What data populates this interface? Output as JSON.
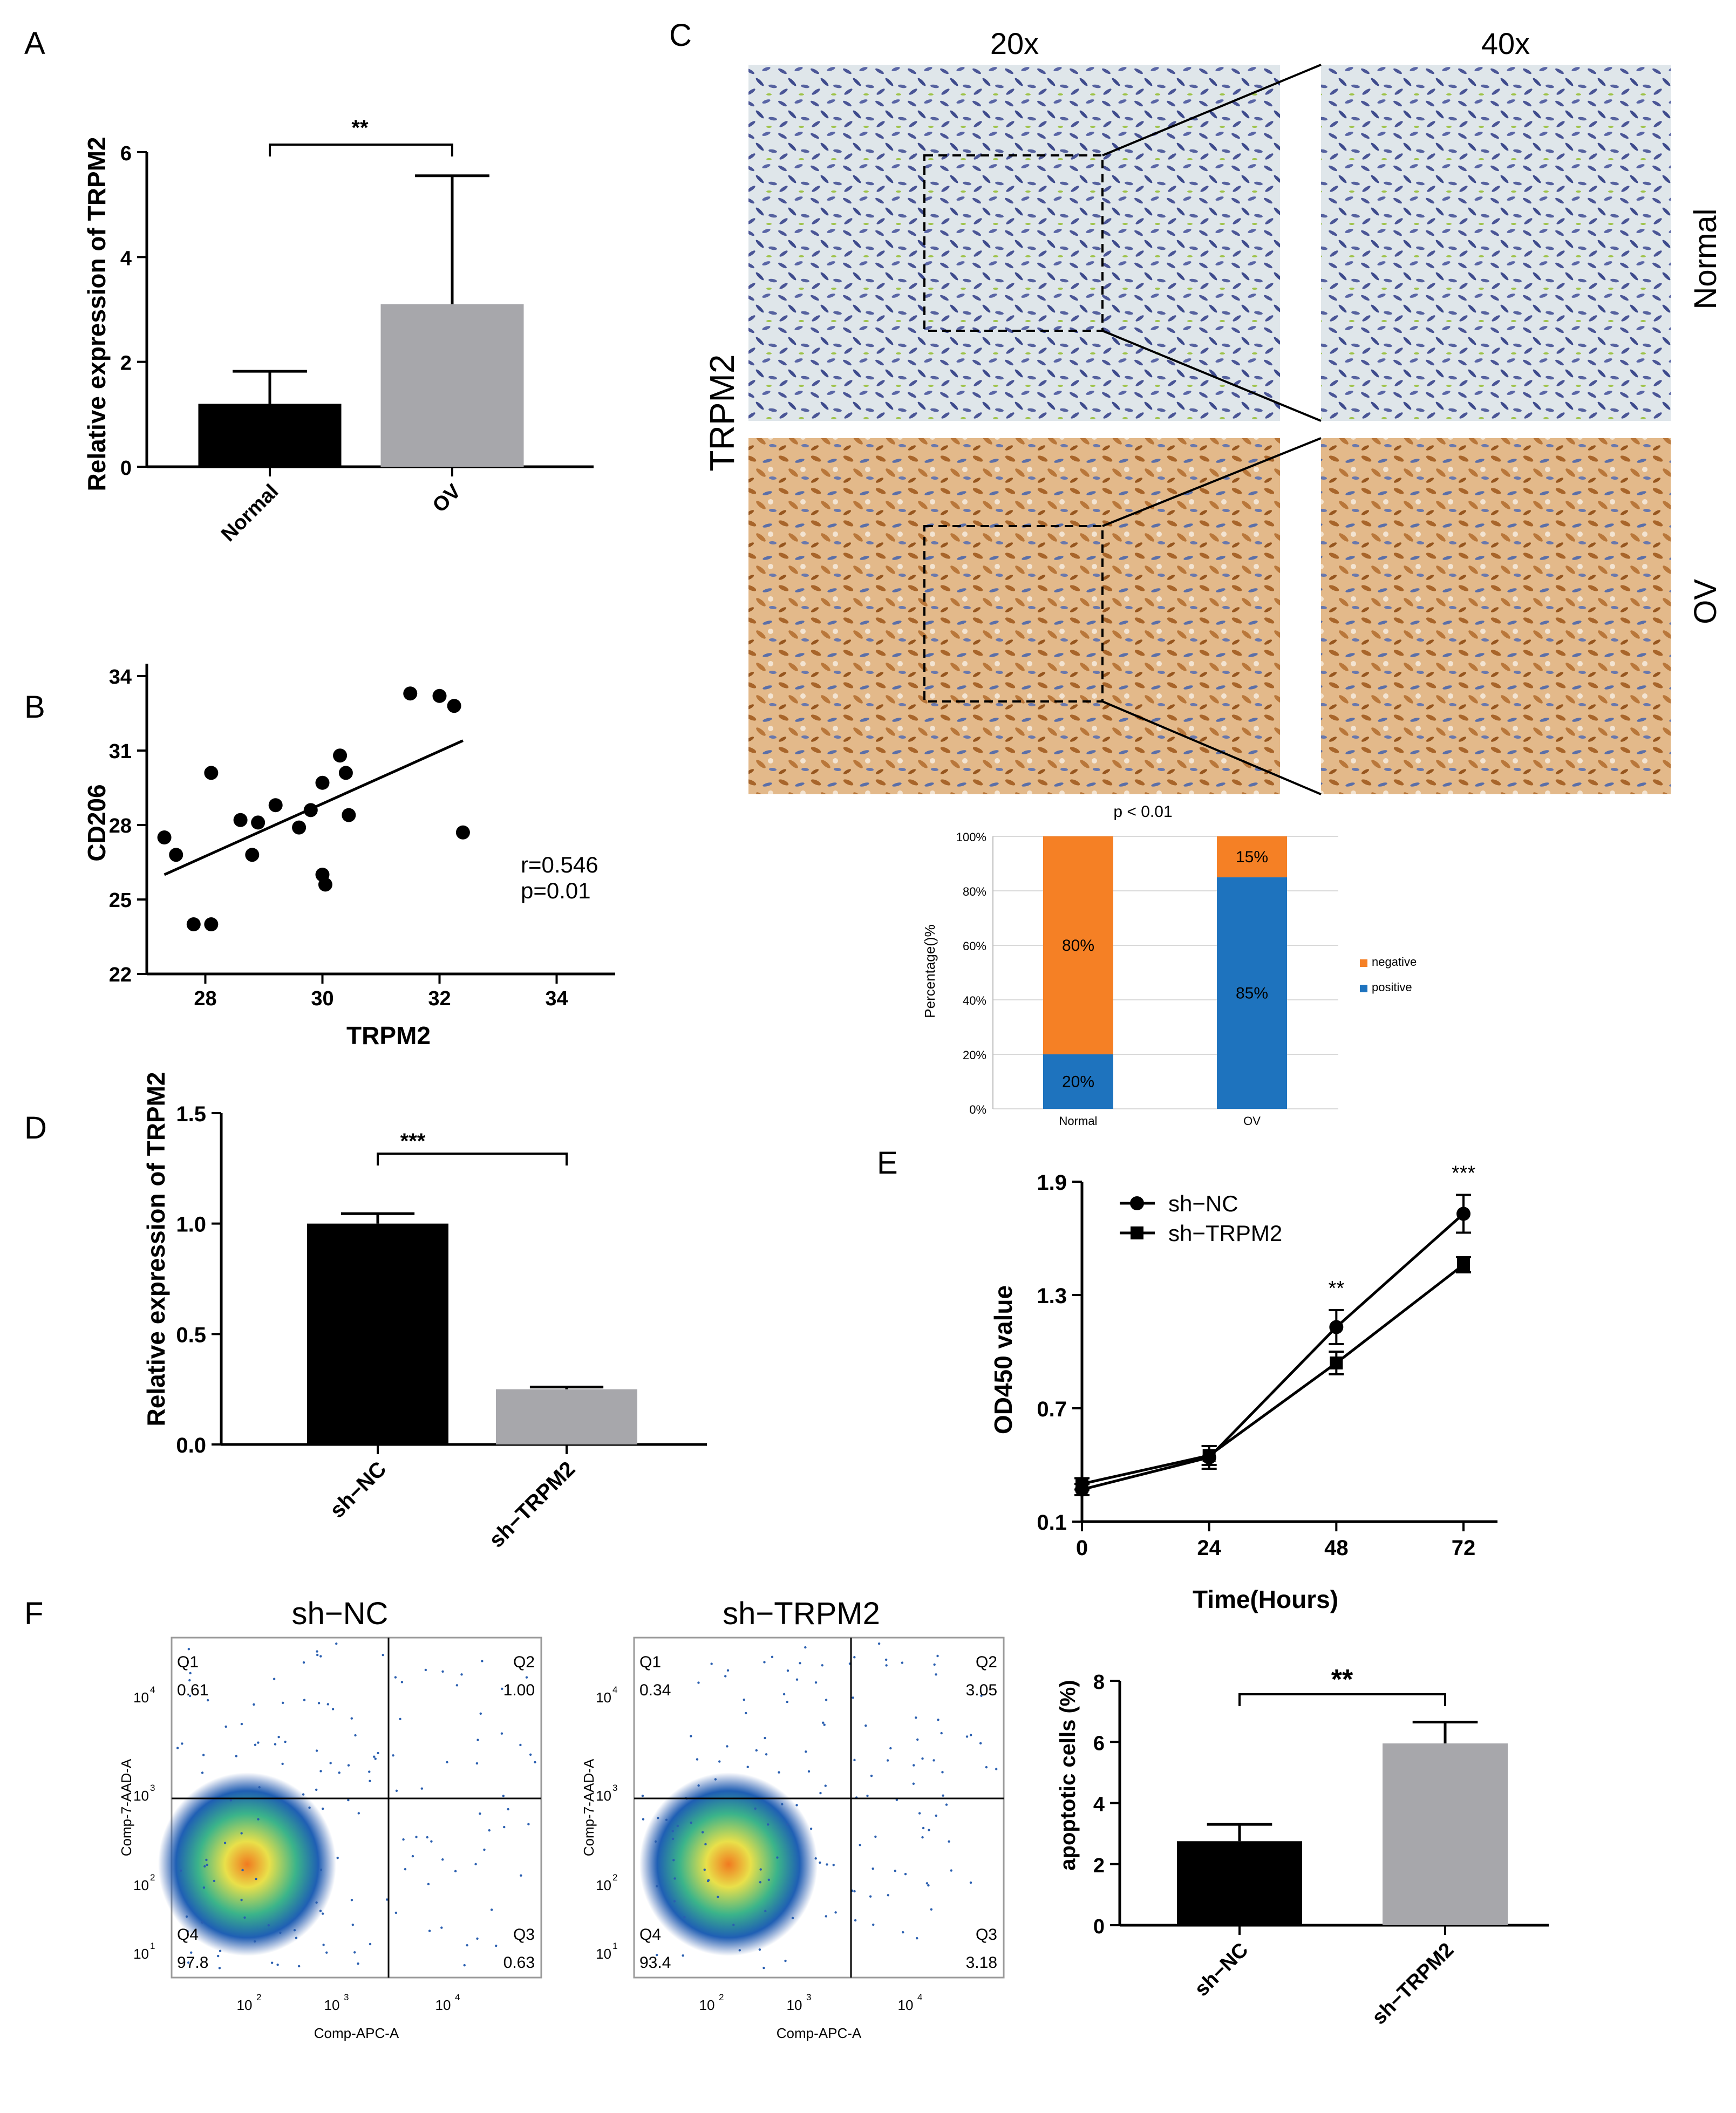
{
  "panel_letters": {
    "a": "A",
    "b": "B",
    "c": "C",
    "d": "D",
    "e": "E",
    "f": "F"
  },
  "colors": {
    "black": "#000000",
    "gray": "#a7a7ab",
    "orange": "#f58025",
    "blue": "#1e73be",
    "he_normal_bg": "#dfe6ea",
    "he_ov_bg": "#e3b98a"
  },
  "chart_data": [
    {
      "panel": "A",
      "type": "bar",
      "categories": [
        "Normal",
        "OV"
      ],
      "values": [
        1.2,
        3.1
      ],
      "errors": [
        0.62,
        2.45
      ],
      "colors": [
        "#000000",
        "#a7a7ab"
      ],
      "ylabel": "Relative expression of TRPM2",
      "yticks": [
        "0",
        "2",
        "4",
        "6"
      ],
      "ylim": [
        0,
        6
      ],
      "significance": "**"
    },
    {
      "panel": "B",
      "type": "scatter",
      "xlabel": "TRPM2",
      "ylabel": "CD206",
      "xticks": [
        "28",
        "30",
        "32",
        "34"
      ],
      "yticks": [
        "22",
        "25",
        "28",
        "31",
        "34"
      ],
      "xlim": [
        27,
        35
      ],
      "ylim": [
        22,
        34.5
      ],
      "points": [
        [
          27.3,
          27.5
        ],
        [
          27.5,
          26.8
        ],
        [
          27.8,
          24
        ],
        [
          28.1,
          30.1
        ],
        [
          28.1,
          24
        ],
        [
          28.6,
          28.2
        ],
        [
          28.8,
          26.8
        ],
        [
          28.9,
          28.1
        ],
        [
          29.2,
          28.8
        ],
        [
          29.6,
          27.9
        ],
        [
          29.8,
          28.6
        ],
        [
          30.0,
          26
        ],
        [
          30.0,
          29.7
        ],
        [
          30.05,
          25.6
        ],
        [
          30.3,
          30.8
        ],
        [
          30.4,
          30.1
        ],
        [
          30.45,
          28.4
        ],
        [
          31.5,
          33.3
        ],
        [
          32.0,
          33.2
        ],
        [
          32.25,
          32.8
        ],
        [
          32.4,
          27.7
        ]
      ],
      "fit_line": [
        [
          27.3,
          26
        ],
        [
          32.4,
          31.4
        ]
      ],
      "r_text": "r=0.546",
      "p_text": "p=0.01"
    },
    {
      "panel": "C",
      "type": "bar",
      "title": "p < 0.01",
      "categories": [
        "Normal",
        "OV"
      ],
      "series": [
        {
          "name": "positive",
          "values": [
            20,
            85
          ],
          "labels": [
            "20%",
            "85%"
          ],
          "color": "#1e73be"
        },
        {
          "name": "negative",
          "values": [
            80,
            15
          ],
          "labels": [
            "80%",
            "15%"
          ],
          "color": "#f58025"
        }
      ],
      "ylabel": "Percentage()%",
      "yticks": [
        "0%",
        "20%",
        "40%",
        "60%",
        "80%",
        "100%"
      ],
      "ylim": [
        0,
        100
      ],
      "legend": [
        "negative",
        "positive"
      ],
      "stacked": true
    },
    {
      "panel": "D",
      "type": "bar",
      "categories": [
        "sh−NC",
        "sh−TRPM2"
      ],
      "values": [
        1.0,
        0.25
      ],
      "errors": [
        0.045,
        0.01
      ],
      "colors": [
        "#000000",
        "#a7a7ab"
      ],
      "ylabel": "Relative expression of TRPM2",
      "yticks": [
        "0.0",
        "0.5",
        "1.0",
        "1.5"
      ],
      "ylim": [
        0,
        1.5
      ],
      "significance": "***"
    },
    {
      "panel": "E",
      "type": "line",
      "x": [
        0,
        24,
        48,
        72
      ],
      "series": [
        {
          "name": "sh−NC",
          "values": [
            0.27,
            0.44,
            1.13,
            1.73
          ],
          "errors": [
            0.03,
            0.06,
            0.09,
            0.1
          ],
          "marker": "circle"
        },
        {
          "name": "sh−TRPM2",
          "values": [
            0.3,
            0.45,
            0.94,
            1.46
          ],
          "errors": [
            0.03,
            0.05,
            0.06,
            0.04
          ],
          "marker": "square"
        }
      ],
      "xlabel": "Time(Hours)",
      "ylabel": "OD450 value",
      "xticks": [
        "0",
        "24",
        "48",
        "72"
      ],
      "yticks": [
        "0.1",
        "0.7",
        "1.3",
        "1.9"
      ],
      "ylim": [
        0.1,
        1.9
      ],
      "annotations": [
        {
          "x": 48,
          "text": "**"
        },
        {
          "x": 72,
          "text": "***"
        }
      ]
    },
    {
      "panel": "F",
      "type": "bar",
      "categories": [
        "sh−NC",
        "sh−TRPM2"
      ],
      "values": [
        2.75,
        5.95
      ],
      "errors": [
        0.55,
        0.7
      ],
      "colors": [
        "#000000",
        "#a7a7ab"
      ],
      "ylabel": "apoptotic cells (%)",
      "yticks": [
        "0",
        "2",
        "4",
        "6",
        "8"
      ],
      "ylim": [
        0,
        8
      ],
      "significance": "**"
    }
  ],
  "panel_c": {
    "col_20x": "20x",
    "col_40x": "40x",
    "row_label": "TRPM2",
    "row_normal": "Normal",
    "row_ov": "OV"
  },
  "flow": [
    {
      "title": "sh−NC",
      "q1": "Q1",
      "q1v": "0.61",
      "q2": "Q2",
      "q2v": "1.00",
      "q3": "Q3",
      "q3v": "0.63",
      "q4": "Q4",
      "q4v": "97.8",
      "xlabel": "Comp-APC-A",
      "ylabel": "Comp-7-AAD-A"
    },
    {
      "title": "sh−TRPM2",
      "q1": "Q1",
      "q1v": "0.34",
      "q2": "Q2",
      "q2v": "3.05",
      "q3": "Q3",
      "q3v": "3.18",
      "q4": "Q4",
      "q4v": "93.4",
      "xlabel": "Comp-APC-A",
      "ylabel": "Comp-7-AAD-A"
    }
  ],
  "flow_ticks": {
    "t1": "10",
    "t2": "10",
    "t3": "10",
    "t4": "10",
    "e1": "1",
    "e2": "2",
    "e3": "3",
    "e4": "4"
  }
}
